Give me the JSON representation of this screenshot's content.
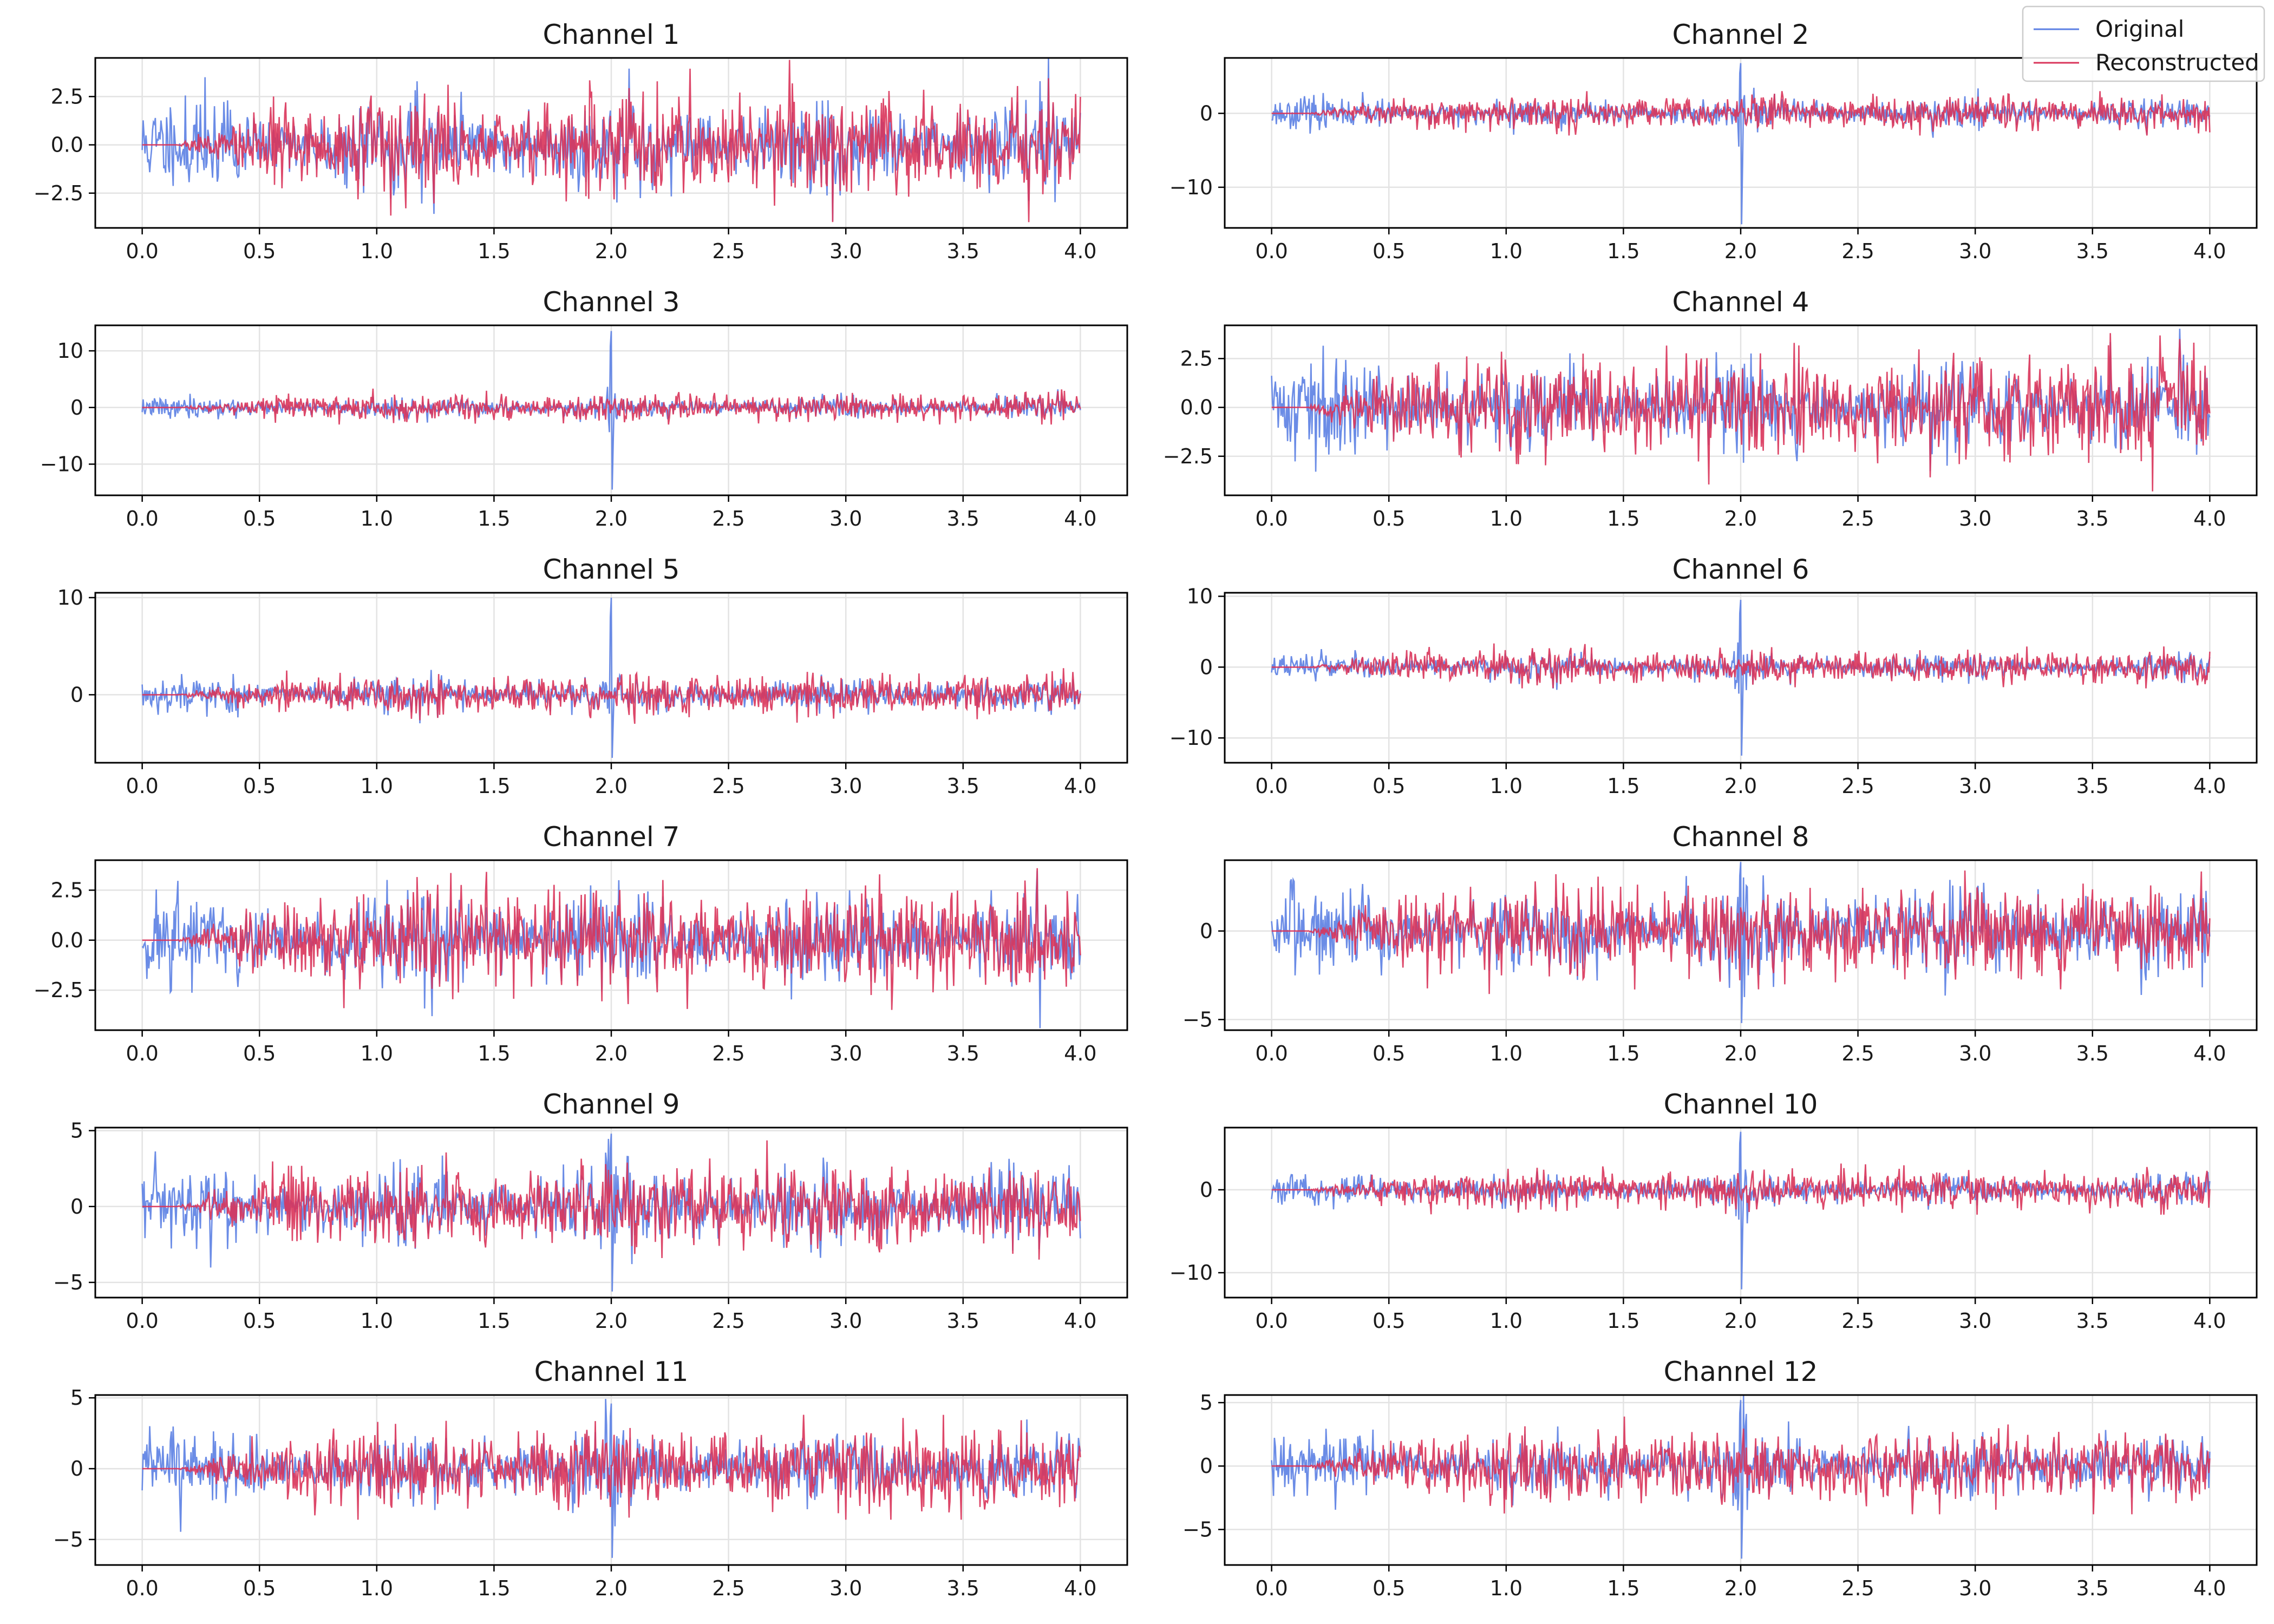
{
  "chart_data": {
    "type": "line",
    "layout": "6x2 grid of subplots",
    "legend": {
      "placement": "top-right",
      "entries": [
        {
          "label": "Original",
          "color": "#5b7fe3"
        },
        {
          "label": "Reconstructed",
          "color": "#d9345a"
        }
      ]
    },
    "series_styles": {
      "original": {
        "color": "#5b7fe3"
      },
      "reconstructed": {
        "color": "#d9345a"
      }
    },
    "grid": true,
    "x_ticks": [
      "0.0",
      "0.5",
      "1.0",
      "1.5",
      "2.0",
      "2.5",
      "3.0",
      "3.5",
      "4.0"
    ],
    "xlim": [
      -0.2,
      4.2
    ],
    "subplots": [
      {
        "title": "Channel 1",
        "ylim": [
          -4.3,
          4.5
        ],
        "yticks": [
          -2.5,
          0.0,
          2.5
        ],
        "ytick_labels": [
          "−2.5",
          "0.0",
          "2.5"
        ],
        "amp_orig": 1.3,
        "amp_rec": 1.25,
        "spike": 0,
        "spike_orig_max": 2.5,
        "spike_orig_min": -2.0,
        "rec_max": 4.4,
        "rec_min": -4.0,
        "seed": 11
      },
      {
        "title": "Channel 2",
        "ylim": [
          -15.5,
          7.5
        ],
        "yticks": [
          -10,
          0
        ],
        "ytick_labels": [
          "−10",
          "0"
        ],
        "amp_orig": 1.1,
        "amp_rec": 1.2,
        "spike": 1,
        "spike_orig_max": 6.8,
        "spike_orig_min": -15.0,
        "rec_max": 3.0,
        "rec_min": -3.0,
        "seed": 23
      },
      {
        "title": "Channel 3",
        "ylim": [
          -15.5,
          14.5
        ],
        "yticks": [
          -10,
          0,
          10
        ],
        "ytick_labels": [
          "−10",
          "0",
          "10"
        ],
        "amp_orig": 1.0,
        "amp_rec": 1.2,
        "spike": 1,
        "spike_orig_max": 13.5,
        "spike_orig_min": -14.5,
        "rec_max": 3.5,
        "rec_min": -3.0,
        "seed": 37
      },
      {
        "title": "Channel 4",
        "ylim": [
          -4.5,
          4.2
        ],
        "yticks": [
          -2.5,
          0.0,
          2.5
        ],
        "ytick_labels": [
          "−2.5",
          "0.0",
          "2.5"
        ],
        "amp_orig": 1.3,
        "amp_rec": 1.3,
        "spike": 0,
        "spike_orig_max": 3.0,
        "spike_orig_min": -3.2,
        "rec_max": 3.8,
        "rec_min": -4.3,
        "seed": 41
      },
      {
        "title": "Channel 5",
        "ylim": [
          -7.0,
          10.5
        ],
        "yticks": [
          0,
          10
        ],
        "ytick_labels": [
          "0",
          "10"
        ],
        "amp_orig": 1.0,
        "amp_rec": 1.1,
        "spike": 1,
        "spike_orig_max": 10.0,
        "spike_orig_min": -6.5,
        "rec_max": 3.5,
        "rec_min": -3.0,
        "seed": 53
      },
      {
        "title": "Channel 6",
        "ylim": [
          -13.5,
          10.5
        ],
        "yticks": [
          -10,
          0,
          10
        ],
        "ytick_labels": [
          "−10",
          "0",
          "10"
        ],
        "amp_orig": 1.0,
        "amp_rec": 1.2,
        "spike": 1,
        "spike_orig_max": 9.5,
        "spike_orig_min": -12.5,
        "rec_max": 3.5,
        "rec_min": -3.0,
        "seed": 67
      },
      {
        "title": "Channel 7",
        "ylim": [
          -4.5,
          4.0
        ],
        "yticks": [
          -2.5,
          0.0,
          2.5
        ],
        "ytick_labels": [
          "−2.5",
          "0.0",
          "2.5"
        ],
        "amp_orig": 1.3,
        "amp_rec": 1.3,
        "spike": 0,
        "spike_orig_max": 3.0,
        "spike_orig_min": -3.0,
        "rec_max": 3.6,
        "rec_min": -4.3,
        "seed": 71
      },
      {
        "title": "Channel 8",
        "ylim": [
          -5.6,
          4.0
        ],
        "yticks": [
          -5,
          0
        ],
        "ytick_labels": [
          "−5",
          "0"
        ],
        "amp_orig": 1.3,
        "amp_rec": 1.3,
        "spike": 1,
        "spike_orig_max": 3.9,
        "spike_orig_min": -5.2,
        "rec_max": 3.8,
        "rec_min": -4.0,
        "seed": 83
      },
      {
        "title": "Channel 9",
        "ylim": [
          -6.0,
          5.2
        ],
        "yticks": [
          -5,
          0,
          5
        ],
        "ytick_labels": [
          "−5",
          "0",
          "5"
        ],
        "amp_orig": 1.4,
        "amp_rec": 1.4,
        "spike": 1,
        "spike_orig_max": 4.8,
        "spike_orig_min": -5.6,
        "rec_max": 4.6,
        "rec_min": -3.5,
        "seed": 97
      },
      {
        "title": "Channel 10",
        "ylim": [
          -13.0,
          7.5
        ],
        "yticks": [
          -10,
          0
        ],
        "ytick_labels": [
          "−10",
          "0"
        ],
        "amp_orig": 1.0,
        "amp_rec": 1.2,
        "spike": 1,
        "spike_orig_max": 7.0,
        "spike_orig_min": -12.0,
        "rec_max": 3.2,
        "rec_min": -3.0,
        "seed": 101
      },
      {
        "title": "Channel 11",
        "ylim": [
          -6.8,
          5.2
        ],
        "yticks": [
          -5,
          0,
          5
        ],
        "ytick_labels": [
          "−5",
          "0",
          "5"
        ],
        "amp_orig": 1.3,
        "amp_rec": 1.4,
        "spike": 1,
        "spike_orig_max": 4.6,
        "spike_orig_min": -6.3,
        "rec_max": 3.8,
        "rec_min": -3.6,
        "seed": 113
      },
      {
        "title": "Channel 12",
        "ylim": [
          -7.8,
          5.6
        ],
        "yticks": [
          -5,
          0,
          5
        ],
        "ytick_labels": [
          "−5",
          "0",
          "5"
        ],
        "amp_orig": 1.3,
        "amp_rec": 1.4,
        "spike": 1,
        "spike_orig_max": 5.2,
        "spike_orig_min": -7.3,
        "rec_max": 3.9,
        "rec_min": -3.8,
        "seed": 127
      }
    ]
  }
}
